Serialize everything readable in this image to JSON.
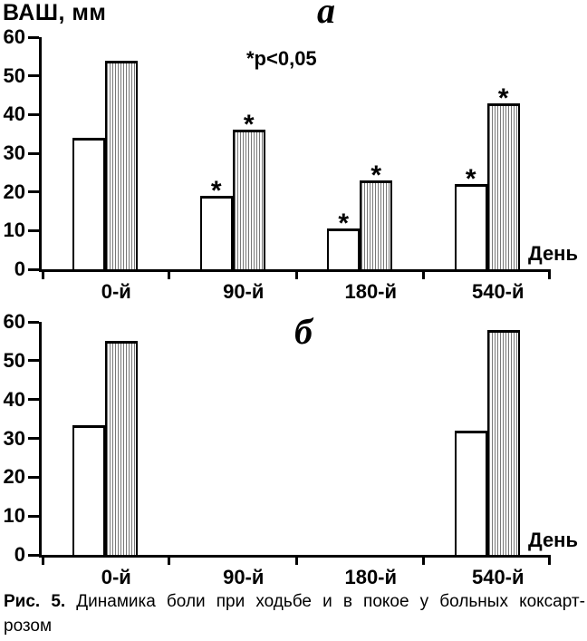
{
  "figure": {
    "y_axis_title": "ВАШ, мм"
  },
  "caption": {
    "label": "Рис. 5.",
    "line1": "Динамика боли при ходьбе и в покое у больных коксарт-",
    "line2": "розом"
  },
  "chart_data": [
    {
      "type": "bar",
      "panel_label": "а",
      "annotation": "*p<0,05",
      "xlabel": "День",
      "ylabel": "ВАШ, мм",
      "ylim": [
        0,
        60
      ],
      "yticks": [
        0,
        10,
        20,
        30,
        40,
        50,
        60
      ],
      "categories": [
        "0-й",
        "90-й",
        "180-й",
        "540-й"
      ],
      "grid": false,
      "legend": "none",
      "series": [
        {
          "name": "open",
          "pattern": "open",
          "values": [
            34,
            19,
            10.5,
            22
          ],
          "asterisk": [
            false,
            true,
            true,
            true
          ]
        },
        {
          "name": "hatched",
          "pattern": "hatched",
          "values": [
            54,
            36,
            23,
            43
          ],
          "asterisk": [
            false,
            true,
            true,
            true
          ]
        }
      ]
    },
    {
      "type": "bar",
      "panel_label": "б",
      "xlabel": "День",
      "ylabel": "ВАШ, мм",
      "ylim": [
        0,
        60
      ],
      "yticks": [
        0,
        10,
        20,
        30,
        40,
        50,
        60
      ],
      "categories": [
        "0-й",
        "90-й",
        "180-й",
        "540-й"
      ],
      "grid": false,
      "legend": "none",
      "series": [
        {
          "name": "open",
          "pattern": "open",
          "values": [
            33.5,
            null,
            null,
            32
          ],
          "asterisk": [
            false,
            false,
            false,
            false
          ]
        },
        {
          "name": "hatched",
          "pattern": "hatched",
          "values": [
            55,
            null,
            null,
            58
          ],
          "asterisk": [
            false,
            false,
            false,
            false
          ]
        }
      ]
    }
  ]
}
